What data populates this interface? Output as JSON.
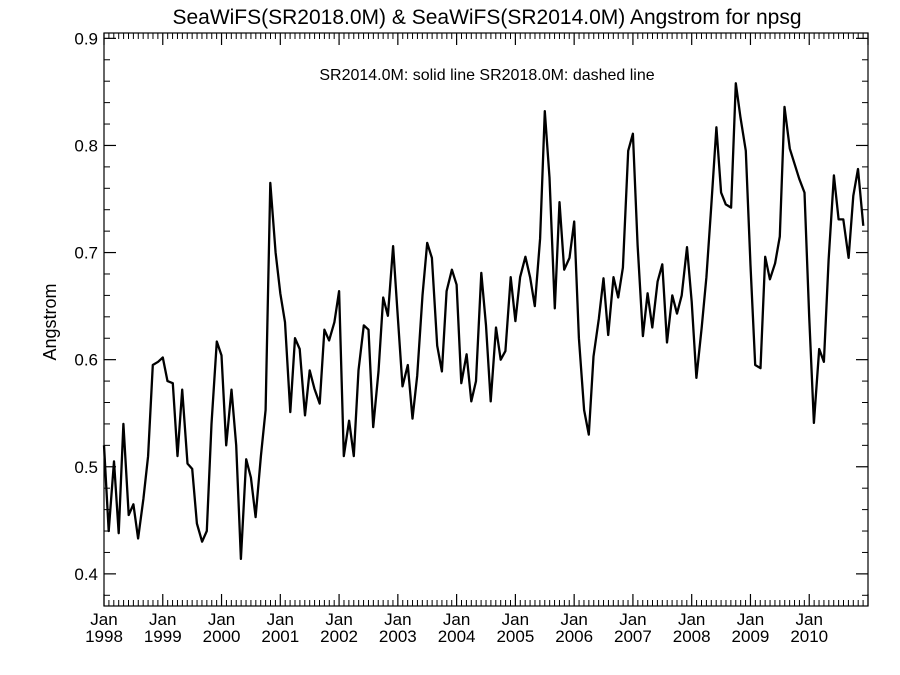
{
  "chart_data": {
    "type": "line",
    "title": "SeaWiFS(SR2018.0M) & SeaWiFS(SR2014.0M)  Angstrom for npsg",
    "annotation": "SR2014.0M: solid line   SR2018.0M: dashed line",
    "ylabel": "Angstrom",
    "xlabel": "",
    "xlim": [
      1998.0,
      2011.0
    ],
    "ylim": [
      0.37,
      0.905
    ],
    "y_ticks": [
      "0.4",
      "0.5",
      "0.6",
      "0.7",
      "0.8",
      "0.9"
    ],
    "x_ticks": [
      {
        "month": "Jan",
        "year": "1998"
      },
      {
        "month": "Jan",
        "year": "1999"
      },
      {
        "month": "Jan",
        "year": "2000"
      },
      {
        "month": "Jan",
        "year": "2001"
      },
      {
        "month": "Jan",
        "year": "2002"
      },
      {
        "month": "Jan",
        "year": "2003"
      },
      {
        "month": "Jan",
        "year": "2004"
      },
      {
        "month": "Jan",
        "year": "2005"
      },
      {
        "month": "Jan",
        "year": "2006"
      },
      {
        "month": "Jan",
        "year": "2007"
      },
      {
        "month": "Jan",
        "year": "2008"
      },
      {
        "month": "Jan",
        "year": "2009"
      },
      {
        "month": "Jan",
        "year": "2010"
      }
    ],
    "grid": false,
    "line_color": "#000000",
    "series": [
      {
        "x": [
          1998.0,
          1998.08,
          1998.17,
          1998.25,
          1998.33,
          1998.42,
          1998.5,
          1998.58,
          1998.67,
          1998.75,
          1998.83,
          1998.92,
          1999.0,
          1999.08,
          1999.17,
          1999.25,
          1999.33,
          1999.42,
          1999.5,
          1999.58,
          1999.67,
          1999.75,
          1999.83,
          1999.92,
          2000.0,
          2000.08,
          2000.17,
          2000.25,
          2000.33,
          2000.42,
          2000.5,
          2000.58,
          2000.67,
          2000.75,
          2000.83,
          2000.92,
          2001.0,
          2001.08,
          2001.17,
          2001.25,
          2001.33,
          2001.42,
          2001.5,
          2001.58,
          2001.67,
          2001.75,
          2001.83,
          2001.92,
          2002.0,
          2002.08,
          2002.17,
          2002.25,
          2002.33,
          2002.42,
          2002.5,
          2002.58,
          2002.67,
          2002.75,
          2002.83,
          2002.92,
          2003.0,
          2003.08,
          2003.17,
          2003.25,
          2003.33,
          2003.42,
          2003.5,
          2003.58,
          2003.67,
          2003.75,
          2003.83,
          2003.92,
          2004.0,
          2004.08,
          2004.17,
          2004.25,
          2004.33,
          2004.42,
          2004.5,
          2004.58,
          2004.67,
          2004.75,
          2004.83,
          2004.92,
          2005.0,
          2005.08,
          2005.17,
          2005.25,
          2005.33,
          2005.42,
          2005.5,
          2005.58,
          2005.67,
          2005.75,
          2005.83,
          2005.92,
          2006.0,
          2006.08,
          2006.17,
          2006.25,
          2006.33,
          2006.42,
          2006.5,
          2006.58,
          2006.67,
          2006.75,
          2006.83,
          2006.92,
          2007.0,
          2007.08,
          2007.17,
          2007.25,
          2007.33,
          2007.42,
          2007.5,
          2007.58,
          2007.67,
          2007.75,
          2007.83,
          2007.92,
          2008.0,
          2008.08,
          2008.17,
          2008.25,
          2008.33,
          2008.42,
          2008.5,
          2008.58,
          2008.67,
          2008.75,
          2008.83,
          2008.92,
          2009.0,
          2009.08,
          2009.17,
          2009.25,
          2009.33,
          2009.42,
          2009.5,
          2009.58,
          2009.67,
          2009.75,
          2009.83,
          2009.92,
          2010.0,
          2010.08,
          2010.17,
          2010.25,
          2010.33,
          2010.42,
          2010.5,
          2010.58,
          2010.67,
          2010.75,
          2010.83,
          2010.92
        ],
        "values": [
          0.52,
          0.44,
          0.505,
          0.438,
          0.54,
          0.455,
          0.465,
          0.433,
          0.47,
          0.51,
          0.595,
          0.598,
          0.602,
          0.58,
          0.578,
          0.51,
          0.572,
          0.503,
          0.498,
          0.447,
          0.43,
          0.44,
          0.54,
          0.617,
          0.604,
          0.52,
          0.572,
          0.52,
          0.414,
          0.507,
          0.49,
          0.453,
          0.51,
          0.553,
          0.765,
          0.7,
          0.662,
          0.635,
          0.551,
          0.62,
          0.61,
          0.548,
          0.59,
          0.573,
          0.559,
          0.628,
          0.618,
          0.635,
          0.664,
          0.51,
          0.543,
          0.51,
          0.59,
          0.632,
          0.628,
          0.537,
          0.589,
          0.658,
          0.641,
          0.706,
          0.64,
          0.575,
          0.595,
          0.545,
          0.585,
          0.66,
          0.709,
          0.695,
          0.613,
          0.589,
          0.664,
          0.684,
          0.67,
          0.578,
          0.605,
          0.561,
          0.58,
          0.681,
          0.632,
          0.561,
          0.63,
          0.6,
          0.608,
          0.677,
          0.636,
          0.677,
          0.696,
          0.677,
          0.65,
          0.713,
          0.832,
          0.77,
          0.648,
          0.747,
          0.684,
          0.695,
          0.729,
          0.62,
          0.553,
          0.53,
          0.603,
          0.638,
          0.676,
          0.623,
          0.677,
          0.658,
          0.686,
          0.795,
          0.811,
          0.707,
          0.622,
          0.662,
          0.63,
          0.673,
          0.689,
          0.616,
          0.66,
          0.643,
          0.66,
          0.705,
          0.654,
          0.583,
          0.63,
          0.677,
          0.741,
          0.817,
          0.756,
          0.745,
          0.742,
          0.858,
          0.826,
          0.795,
          0.688,
          0.595,
          0.592,
          0.696,
          0.675,
          0.69,
          0.715,
          0.836,
          0.797,
          0.783,
          0.769,
          0.756,
          0.64,
          0.541,
          0.61,
          0.598,
          0.693,
          0.772,
          0.731,
          0.731,
          0.695,
          0.753,
          0.778,
          0.725
        ]
      }
    ]
  }
}
